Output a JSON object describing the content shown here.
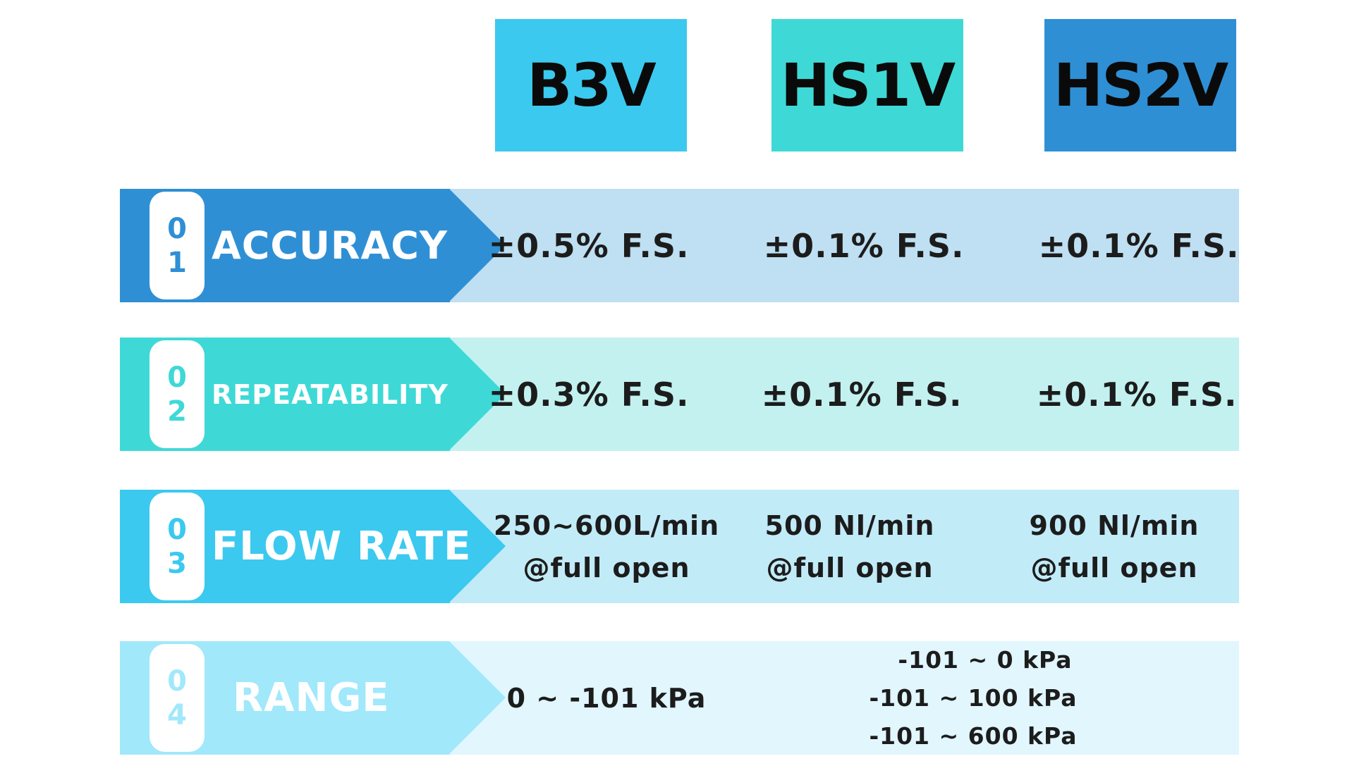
{
  "headers": [
    "B3V",
    "HS1V",
    "HS2V"
  ],
  "rows": [
    {
      "num1": "0",
      "num2": "1",
      "label": "ACCURACY",
      "values": [
        "±0.5% F.S.",
        "±0.1% F.S.",
        "±0.1% F.S."
      ]
    },
    {
      "num1": "0",
      "num2": "2",
      "label": "REPEATABILITY",
      "values": [
        "±0.3% F.S.",
        "±0.1% F.S.",
        "±0.1% F.S."
      ]
    },
    {
      "num1": "0",
      "num2": "3",
      "label": "FLOW RATE",
      "values": [
        {
          "line1": "250~600L/min",
          "line2": "@full open"
        },
        {
          "line1": "500 Nl/min",
          "line2": "@full open"
        },
        {
          "line1": "900 Nl/min",
          "line2": "@full open"
        }
      ]
    },
    {
      "num1": "0",
      "num2": "4",
      "label": "RANGE",
      "b3v": "0 ~ -101 kPa",
      "hs": [
        "-101  ~ 0 kPa",
        "-101  ~ 100 kPa",
        "-101  ~ 600 kPa"
      ]
    }
  ],
  "colors": {
    "b3v": "#3bc9ef",
    "hs1v": "#3ed9d6",
    "hs2v": "#2f8fd5",
    "range": "#a1e8fb"
  }
}
